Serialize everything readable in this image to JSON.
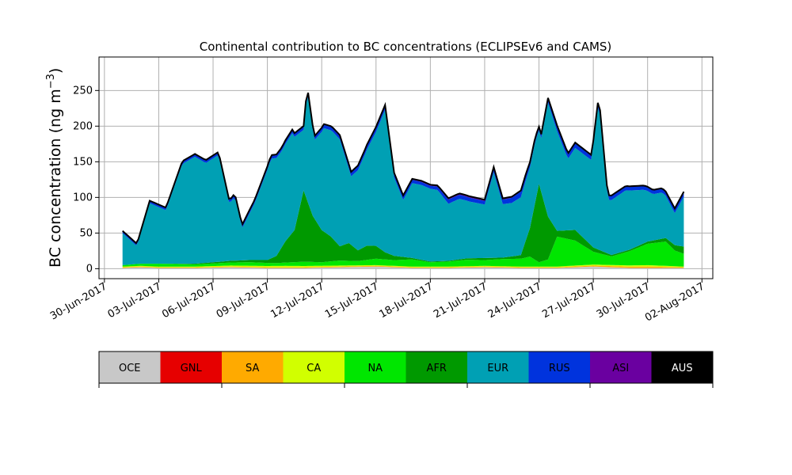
{
  "chart_data": {
    "type": "area",
    "title": "Continental contribution to BC concentrations (ECLIPSEv6 and CAMS)",
    "xlabel": "",
    "ylabel": "BC concentration (ng m",
    "ylabel_sup": "−3",
    "ylabel_close": ")",
    "ylim": [
      -14,
      297
    ],
    "yticks": [
      0,
      50,
      100,
      150,
      200,
      250
    ],
    "xlim": [
      -0.3,
      33.6
    ],
    "xtick_labels": [
      {
        "day": 0,
        "label": "30-Jun-2017"
      },
      {
        "day": 3,
        "label": "03-Jul-2017"
      },
      {
        "day": 6,
        "label": "06-Jul-2017"
      },
      {
        "day": 9,
        "label": "09-Jul-2017"
      },
      {
        "day": 12,
        "label": "12-Jul-2017"
      },
      {
        "day": 15,
        "label": "15-Jul-2017"
      },
      {
        "day": 18,
        "label": "18-Jul-2017"
      },
      {
        "day": 21,
        "label": "21-Jul-2017"
      },
      {
        "day": 24,
        "label": "24-Jul-2017"
      },
      {
        "day": 27,
        "label": "27-Jul-2017"
      },
      {
        "day": 30,
        "label": "30-Jul-2017"
      },
      {
        "day": 33,
        "label": "02-Aug-2017"
      }
    ],
    "grid": true,
    "x_units": "days since 30-Jun-2017 00:00",
    "total_outline_color": "#000000",
    "series": [
      {
        "name": "OCE",
        "color": "#c8c8c8",
        "x": [
          1.0,
          2.0,
          3.0,
          5.0,
          7.0,
          9.0,
          11.0,
          13.0,
          15.0,
          17.0,
          19.0,
          21.0,
          23.0,
          25.0,
          27.0,
          29.0,
          31.0,
          32.0
        ],
        "values": [
          1,
          2,
          1,
          1,
          2,
          1,
          1,
          2,
          3,
          1,
          1,
          2,
          1,
          1,
          3,
          1,
          1,
          1
        ]
      },
      {
        "name": "GNL",
        "color": "#e60000",
        "x": [
          1.0,
          32.0
        ],
        "values": [
          0,
          0
        ]
      },
      {
        "name": "SA",
        "color": "#ffaa00",
        "x": [
          1.0,
          5.0,
          10.0,
          15.0,
          20.0,
          25.0,
          30.0,
          32.0
        ],
        "values": [
          1,
          1,
          1,
          1,
          1,
          1,
          2,
          1
        ]
      },
      {
        "name": "CA",
        "color": "#d1ff00",
        "x": [
          1.0,
          5.0,
          10.0,
          15.0,
          20.0,
          25.0,
          30.0,
          32.0
        ],
        "values": [
          1,
          1,
          2,
          1,
          1,
          1,
          2,
          1
        ]
      },
      {
        "name": "NA",
        "color": "#00e600",
        "x": [
          1.0,
          2.0,
          3.0,
          5.0,
          6.5,
          8.0,
          9.5,
          11.0,
          12.0,
          13.0,
          14.0,
          15.0,
          16.0,
          17.0,
          18.0,
          19.0,
          20.0,
          21.0,
          22.0,
          23.0,
          23.5,
          24.0,
          24.5,
          25.0,
          26.0,
          27.0,
          28.0,
          29.0,
          30.0,
          31.0,
          31.5,
          32.0
        ],
        "values": [
          2,
          3,
          4,
          3,
          4,
          5,
          4,
          6,
          5,
          7,
          6,
          9,
          8,
          10,
          6,
          7,
          9,
          8,
          10,
          11,
          14,
          6,
          10,
          42,
          35,
          18,
          12,
          20,
          30,
          34,
          22,
          18
        ]
      },
      {
        "name": "AFR",
        "color": "#009900",
        "x": [
          1.0,
          3.0,
          5.0,
          6.5,
          8.0,
          9.0,
          9.5,
          10.0,
          10.5,
          11.0,
          11.5,
          12.0,
          12.5,
          13.0,
          13.5,
          14.0,
          14.5,
          15.0,
          15.5,
          16.0,
          17.0,
          18.0,
          19.0,
          20.0,
          21.0,
          22.0,
          23.0,
          23.5,
          24.0,
          24.5,
          25.0,
          26.0,
          27.0,
          28.0,
          29.0,
          30.0,
          31.0,
          32.0
        ],
        "values": [
          0,
          0,
          1,
          2,
          3,
          4,
          10,
          30,
          45,
          100,
          65,
          45,
          35,
          20,
          25,
          15,
          20,
          18,
          10,
          6,
          2,
          1,
          1,
          2,
          3,
          2,
          5,
          40,
          110,
          60,
          8,
          15,
          6,
          2,
          2,
          3,
          5,
          10
        ]
      },
      {
        "name": "EUR",
        "color": "#00a0b4",
        "x": [
          1.0,
          1.8,
          2.5,
          3.4,
          4.3,
          5.0,
          5.6,
          6.3,
          6.9,
          7.2,
          7.6,
          8.3,
          9.2,
          9.8,
          10.4,
          11.0,
          11.2,
          11.6,
          12.1,
          12.6,
          13.0,
          13.6,
          14.4,
          15.0,
          15.5,
          16.0,
          16.5,
          17.0,
          17.5,
          18.4,
          19.0,
          19.6,
          20.1,
          21.0,
          21.5,
          22.0,
          22.5,
          23.3,
          23.8,
          24.1,
          24.5,
          25.0,
          25.6,
          26.0,
          26.9,
          27.3,
          27.8,
          28.3,
          28.8,
          29.3,
          29.8,
          30.3,
          30.8,
          31.5,
          32.0
        ],
        "values": [
          45,
          25,
          85,
          75,
          140,
          150,
          140,
          150,
          80,
          90,
          45,
          80,
          140,
          135,
          140,
          85,
          155,
          110,
          145,
          150,
          150,
          95,
          130,
          160,
          200,
          110,
          80,
          105,
          105,
          100,
          80,
          85,
          80,
          75,
          120,
          75,
          75,
          85,
          85,
          70,
          160,
          140,
          100,
          115,
          120,
          210,
          75,
          80,
          85,
          80,
          75,
          65,
          65,
          45,
          70
        ]
      },
      {
        "name": "RUS",
        "color": "#0033dd",
        "x": [
          1.0,
          5.0,
          10.0,
          13.0,
          15.0,
          18.0,
          19.0,
          21.0,
          23.0,
          24.0,
          25.0,
          27.0,
          29.0,
          31.0,
          32.0
        ],
        "values": [
          2,
          3,
          4,
          5,
          6,
          4,
          6,
          5,
          8,
          4,
          7,
          6,
          5,
          5,
          6
        ]
      },
      {
        "name": "ASI",
        "color": "#6a00a0",
        "x": [
          1.0,
          5.0,
          10.0,
          15.0,
          20.0,
          25.0,
          30.0,
          32.0
        ],
        "values": [
          1,
          1,
          1,
          1,
          2,
          1,
          1,
          1
        ]
      },
      {
        "name": "AUS",
        "color": "#000000",
        "x": [
          1.0,
          32.0
        ],
        "values": [
          0,
          0
        ]
      }
    ],
    "legend_position": "bottom-colorbar"
  }
}
